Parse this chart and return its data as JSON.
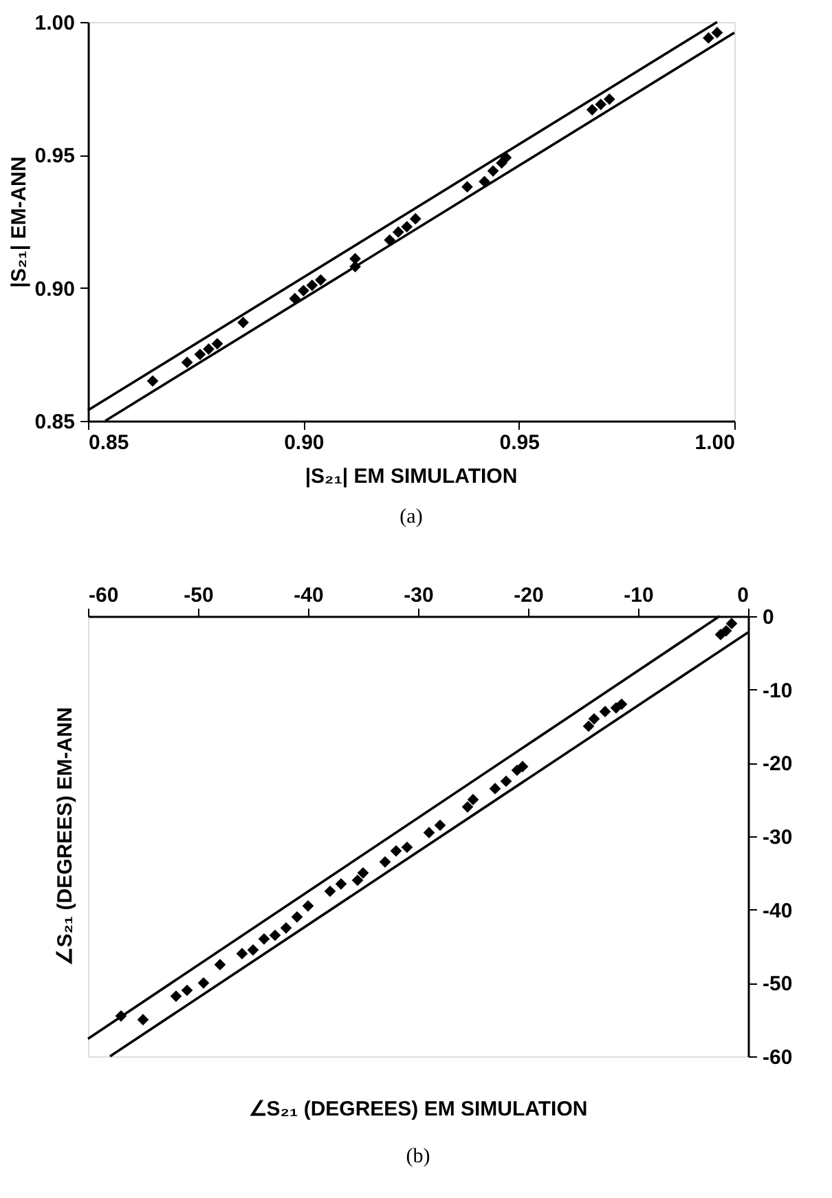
{
  "chart_data": [
    {
      "type": "scatter",
      "xlabel": "|S₂₁| EM SIMULATION",
      "ylabel": "|S₂₁| EM-ANN",
      "annotations": [
        "(a)"
      ],
      "xlim": [
        0.85,
        1
      ],
      "ylim": [
        0.85,
        1
      ],
      "xticks": [
        0.85,
        {
          "value": 0.9,
          "label": "0.90"
        },
        0.95,
        {
          "value": 1,
          "label": "1.00"
        }
      ],
      "yticks": [
        0.85,
        {
          "value": 0.9,
          "label": "0.90"
        },
        0.95,
        {
          "value": 1,
          "label": "1.00"
        }
      ],
      "grid": false,
      "line_style": "solid",
      "series": [
        {
          "color": "#000000",
          "marker": "diamond",
          "x": [
            0.865,
            0.873,
            0.876,
            0.878,
            0.88,
            0.886,
            0.898,
            0.9,
            0.902,
            0.904,
            0.912,
            0.912,
            0.92,
            0.922,
            0.924,
            0.926,
            0.938,
            0.942,
            0.944,
            0.946,
            0.947,
            0.967,
            0.969,
            0.971,
            0.994,
            0.996
          ],
          "values": [
            0.865,
            0.872,
            0.875,
            0.877,
            0.879,
            0.887,
            0.896,
            0.899,
            0.901,
            0.903,
            0.911,
            0.908,
            0.918,
            0.921,
            0.923,
            0.926,
            0.938,
            0.94,
            0.944,
            0.947,
            0.949,
            0.967,
            0.969,
            0.971,
            0.994,
            0.996
          ]
        },
        {
          "type": "line",
          "marker": "none",
          "color": "#000000",
          "x": [
            0.85,
            0.996
          ],
          "values": [
            0.854,
            1
          ]
        },
        {
          "type": "line",
          "marker": "none",
          "color": "#000000",
          "x": [
            0.854,
            1
          ],
          "values": [
            0.85,
            0.996
          ]
        }
      ]
    },
    {
      "type": "scatter",
      "xlabel": "∠S₂₁ (DEGREES)  EM SIMULATION",
      "ylabel": "∠S₂₁ (DEGREES)  EM-ANN",
      "annotations": [
        "(b)"
      ],
      "xlim": [
        -60,
        0
      ],
      "ylim": [
        -60,
        0
      ],
      "xticks": [
        -60,
        -50,
        -40,
        -30,
        -20,
        -10,
        0
      ],
      "yticks": [
        -60,
        -50,
        -40,
        -30,
        -20,
        -10,
        0
      ],
      "grid": false,
      "line_style": "solid",
      "series": [
        {
          "color": "#000000",
          "marker": "diamond",
          "x": [
            -57,
            -55,
            -52,
            -51,
            -49.5,
            -48,
            -46,
            -45,
            -44,
            -43,
            -42,
            -41,
            -40,
            -38,
            -37,
            -35.5,
            -35,
            -33,
            -32,
            -31,
            -29,
            -28,
            -25.5,
            -25,
            -23,
            -22,
            -21,
            -20.5,
            -14.5,
            -14,
            -13,
            -12,
            -11.5,
            -2.5,
            -2,
            -1.5
          ],
          "values": [
            -54.5,
            -55,
            -51.8,
            -51,
            -50,
            -47.5,
            -46,
            -45.5,
            -44,
            -43.5,
            -42.5,
            -41,
            -39.5,
            -37.5,
            -36.5,
            -36,
            -35,
            -33.5,
            -32,
            -31.5,
            -29.5,
            -28.5,
            -26,
            -25,
            -23.5,
            -22.5,
            -21,
            -20.5,
            -15,
            -14,
            -13,
            -12.5,
            -12,
            -2.5,
            -2,
            -1
          ]
        },
        {
          "type": "line",
          "marker": "none",
          "color": "#000000",
          "x": [
            -60,
            -2.6
          ],
          "values": [
            -57.6,
            0
          ]
        },
        {
          "type": "line",
          "marker": "none",
          "color": "#000000",
          "x": [
            -58,
            0
          ],
          "values": [
            -60,
            -2.2
          ]
        }
      ]
    }
  ]
}
